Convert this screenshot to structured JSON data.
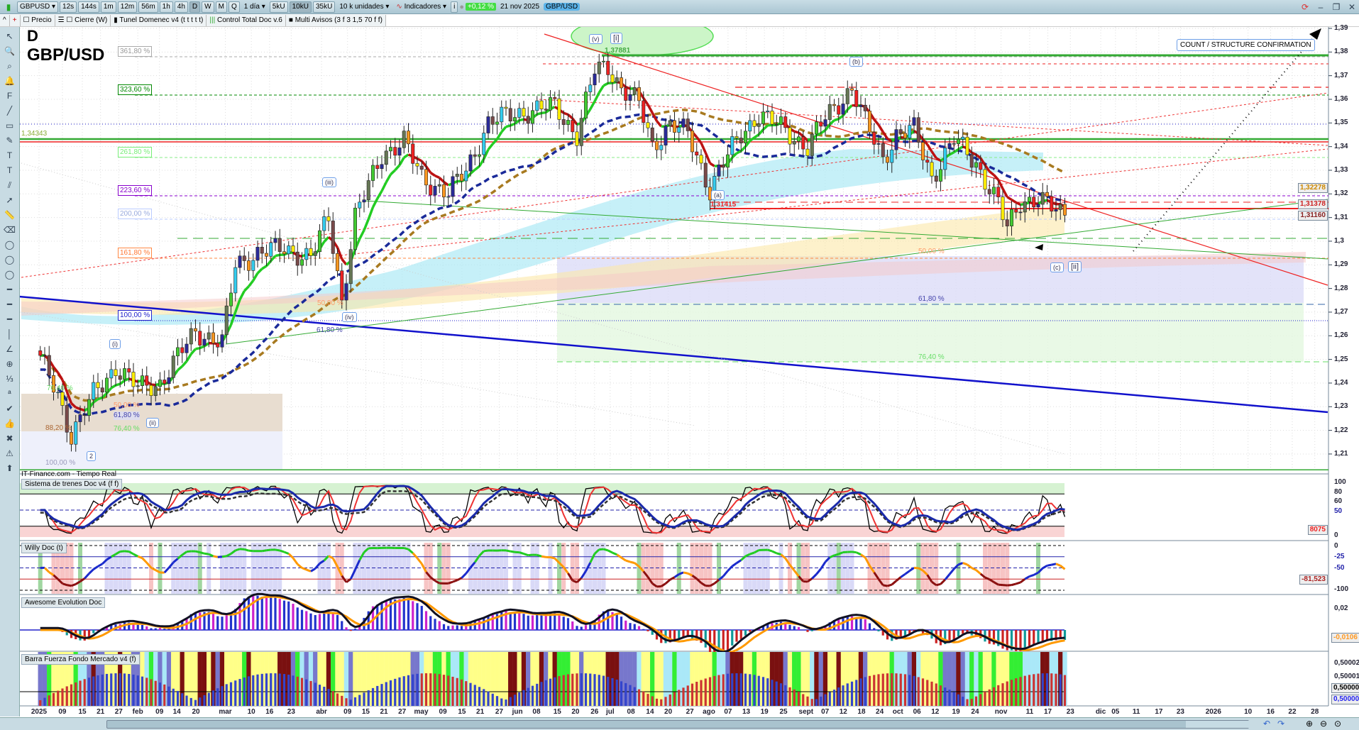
{
  "toolbar": {
    "symbol": "GBPUSD",
    "timeframes": [
      "12s",
      "144s",
      "1m",
      "12m",
      "56m",
      "1h",
      "4h",
      "D",
      "W",
      "M",
      "Q"
    ],
    "period": "1 día",
    "units": [
      "5kU",
      "10kU",
      "35kU"
    ],
    "units_select": "10 k unidades",
    "indicators": "Indicadores",
    "info": "i",
    "change": "+0,12 %",
    "date": "21 nov 2025",
    "instrument": "GBP/USD"
  },
  "legend_bar": {
    "items": [
      "Precio",
      "Cierre (W)",
      "Tunel Domenec v4 (t t t t t)",
      "Control Total Doc v.6",
      "Multi Avisos (3 f 3 1,5 70 f f)"
    ]
  },
  "chart": {
    "timeframe": "D",
    "symbol": "GBP/USD",
    "source": "IT-Finance.com - Tiempo Real",
    "annotation": "COUNT / STRUCTURE CONFIRMATION",
    "level_label": "1,34343",
    "high_label": "1,37881",
    "low_label": "1,31415",
    "fib_left": [
      "361,80 %",
      "323,60 %",
      "261,80 %",
      "223,60 %",
      "200,00 %",
      "161,80 %",
      "100,00 %",
      "61,80 %",
      "50,00 %",
      "76,40 %",
      "88,20 %",
      "76,40 %",
      "100,00 %",
      "50,00 %"
    ],
    "fib_right": [
      "50,00 %",
      "61,80 %",
      "76,40 %"
    ],
    "waves": [
      "(v)",
      "[i]",
      "(b)",
      "(a)",
      "(c)",
      "[ii]",
      "(iii)",
      "(iv)",
      "(i)",
      "(ii)",
      "2"
    ],
    "price_ticks": [
      "1,39",
      "1,38",
      "1,37",
      "1,36",
      "1,35",
      "1,34",
      "1,33",
      "1,32",
      "1,31",
      "1,3",
      "1,29",
      "1,28",
      "1,27",
      "1,26",
      "1,25",
      "1,24",
      "1,23",
      "1,22",
      "1,21"
    ],
    "price_tags": [
      "1,32278",
      "1,31378",
      "1,31160"
    ],
    "colors": {
      "up": "#33ccee",
      "down": "#ee2222",
      "accent": "#44aa33"
    },
    "price_path": [
      [
        "2025-01-02",
        1.25
      ],
      [
        "2025-01-08",
        1.235
      ],
      [
        "2025-01-13",
        1.218
      ],
      [
        "2025-01-20",
        1.235
      ],
      [
        "2025-01-27",
        1.247
      ],
      [
        "2025-02-03",
        1.238
      ],
      [
        "2025-02-10",
        1.24
      ],
      [
        "2025-02-20",
        1.262
      ],
      [
        "2025-02-28",
        1.257
      ],
      [
        "2025-03-05",
        1.29
      ],
      [
        "2025-03-12",
        1.295
      ],
      [
        "2025-03-20",
        1.297
      ],
      [
        "2025-03-28",
        1.293
      ],
      [
        "2025-04-03",
        1.31
      ],
      [
        "2025-04-08",
        1.275
      ],
      [
        "2025-04-11",
        1.31
      ],
      [
        "2025-04-21",
        1.337
      ],
      [
        "2025-04-28",
        1.342
      ],
      [
        "2025-05-02",
        1.327
      ],
      [
        "2025-05-12",
        1.32
      ],
      [
        "2025-05-16",
        1.33
      ],
      [
        "2025-05-23",
        1.35
      ],
      [
        "2025-06-02",
        1.354
      ],
      [
        "2025-06-13",
        1.357
      ],
      [
        "2025-06-20",
        1.345
      ],
      [
        "2025-06-26",
        1.372
      ],
      [
        "2025-07-01",
        1.374
      ],
      [
        "2025-07-04",
        1.365
      ],
      [
        "2025-07-10",
        1.358
      ],
      [
        "2025-07-15",
        1.34
      ],
      [
        "2025-07-21",
        1.35
      ],
      [
        "2025-07-25",
        1.345
      ],
      [
        "2025-08-01",
        1.322
      ],
      [
        "2025-08-05",
        1.33
      ],
      [
        "2025-08-12",
        1.345
      ],
      [
        "2025-08-18",
        1.354
      ],
      [
        "2025-08-25",
        1.348
      ],
      [
        "2025-09-02",
        1.34
      ],
      [
        "2025-09-08",
        1.352
      ],
      [
        "2025-09-16",
        1.365
      ],
      [
        "2025-09-19",
        1.35
      ],
      [
        "2025-09-25",
        1.335
      ],
      [
        "2025-09-30",
        1.345
      ],
      [
        "2025-10-06",
        1.347
      ],
      [
        "2025-10-10",
        1.327
      ],
      [
        "2025-10-17",
        1.343
      ],
      [
        "2025-10-24",
        1.333
      ],
      [
        "2025-10-31",
        1.316
      ],
      [
        "2025-11-04",
        1.305
      ],
      [
        "2025-11-07",
        1.317
      ],
      [
        "2025-11-13",
        1.318
      ],
      [
        "2025-11-18",
        1.314
      ],
      [
        "2025-11-21",
        1.311
      ]
    ]
  },
  "panels": [
    {
      "title": "Sistema de trenes Doc v4 (f f)",
      "axis": [
        "100",
        "80",
        "60",
        "50",
        "0",
        "8075"
      ]
    },
    {
      "title": "Willy Doc (t)",
      "axis": [
        "0",
        "-25",
        "-50",
        "-100",
        "-81,523"
      ]
    },
    {
      "title": "Awesome Evolution Doc",
      "axis": [
        "0,02",
        "-0,0106"
      ]
    },
    {
      "title": "Barra Fuerza Fondo Mercado v4 (f)",
      "axis": [
        "0,50002",
        "0,50001",
        "0,50000",
        "0,50000"
      ]
    }
  ],
  "x_axis": {
    "labels": [
      "2025",
      "09",
      "15",
      "21",
      "27",
      "feb",
      "09",
      "14",
      "20",
      "mar",
      "10",
      "16",
      "23",
      "abr",
      "09",
      "15",
      "21",
      "27",
      "may",
      "09",
      "15",
      "21",
      "27",
      "jun",
      "08",
      "15",
      "20",
      "26",
      "jul",
      "08",
      "14",
      "20",
      "27",
      "ago",
      "07",
      "13",
      "19",
      "25",
      "sept",
      "07",
      "12",
      "18",
      "24",
      "oct",
      "06",
      "12",
      "19",
      "24",
      "nov",
      "11",
      "17",
      "23",
      "dic",
      "05",
      "11",
      "17",
      "23",
      "2026",
      "10",
      "16",
      "22",
      "28"
    ]
  }
}
